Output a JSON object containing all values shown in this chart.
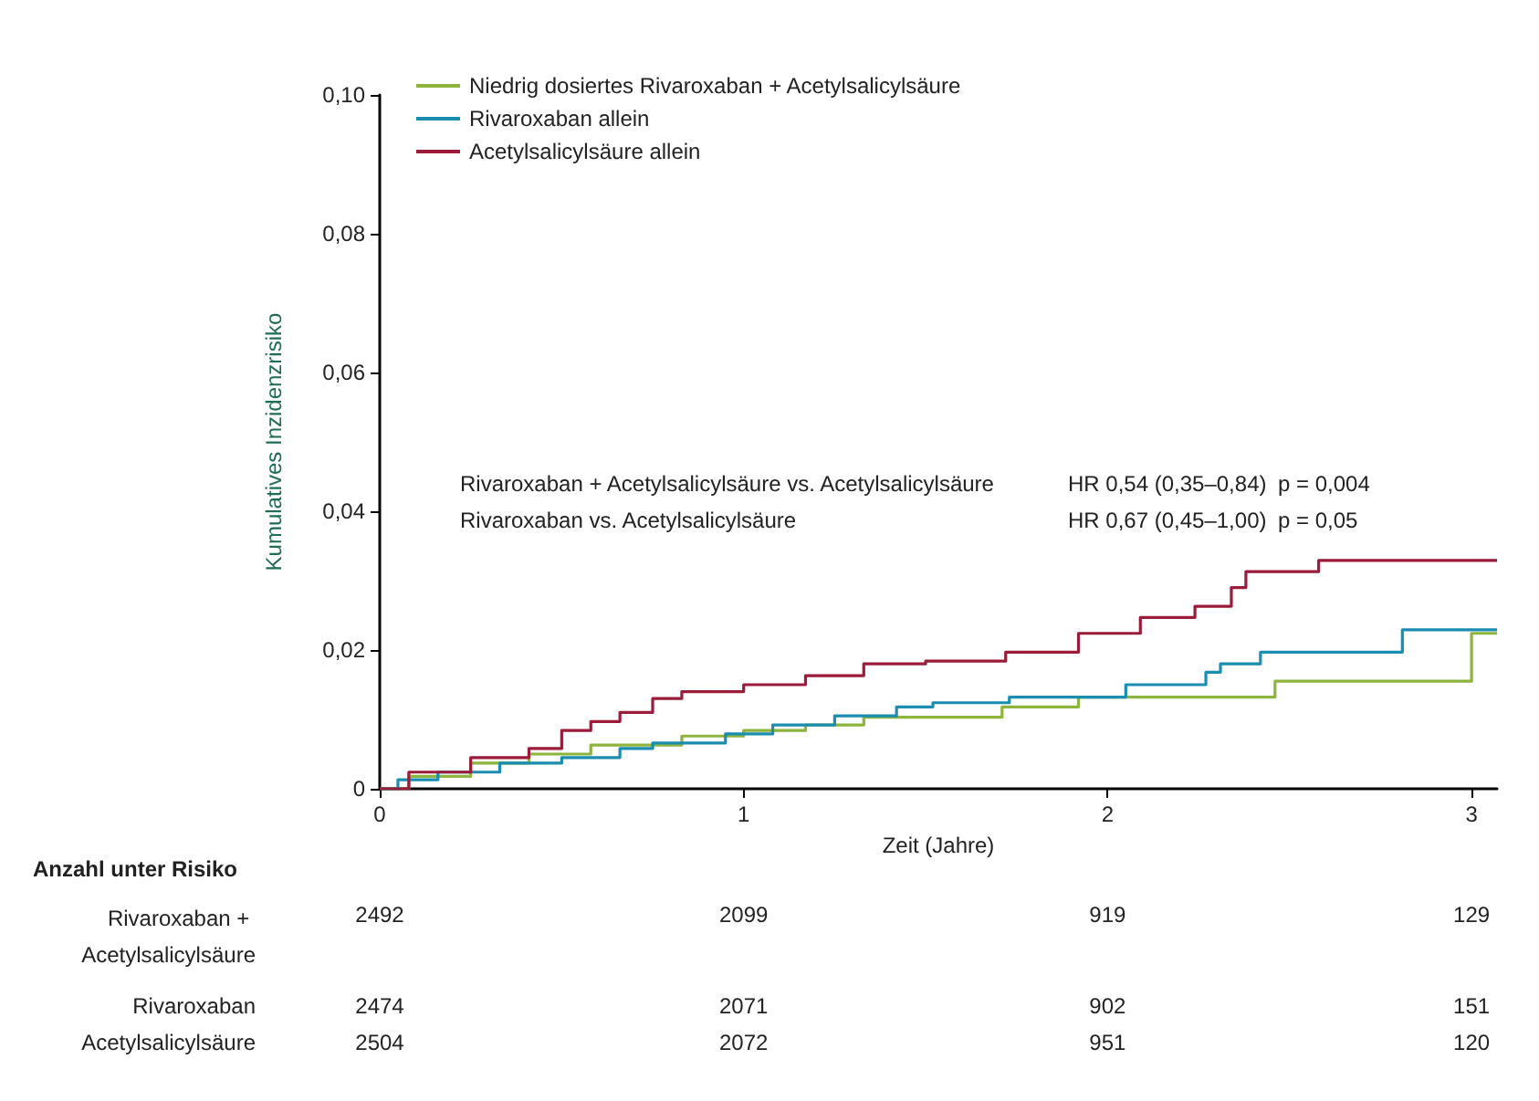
{
  "chart_data": {
    "type": "step",
    "xlabel": "Zeit (Jahre)",
    "ylabel": "Kumulatives Inzidenzrisiko",
    "xlim": [
      0,
      3.07
    ],
    "xticks": [
      0,
      1,
      2,
      3
    ],
    "ylim": [
      0,
      0.1
    ],
    "yticks": [
      {
        "value": 0,
        "label": "0"
      },
      {
        "value": 0.02,
        "label": "0,02"
      },
      {
        "value": 0.04,
        "label": "0,04"
      },
      {
        "value": 0.06,
        "label": "0,06"
      },
      {
        "value": 0.08,
        "label": "0,08"
      },
      {
        "value": 0.1,
        "label": "0,10"
      }
    ],
    "grid": false,
    "legend": "top left",
    "marker": "none",
    "line_style": "solid",
    "series": [
      {
        "name": "Niedrig dosiertes Rivaroxaban + Acetylsalicylsäure",
        "color": "#8db43c",
        "x": [
          0,
          0.08,
          0.25,
          0.41,
          0.58,
          0.83,
          1.0,
          1.17,
          1.33,
          1.71,
          1.92,
          2.46,
          3.0,
          3.07
        ],
        "values": [
          0,
          0.0018,
          0.0037,
          0.005,
          0.0063,
          0.0076,
          0.0084,
          0.0092,
          0.0103,
          0.0118,
          0.0132,
          0.0155,
          0.0224,
          0.0224
        ]
      },
      {
        "name": "Rivaroxaban allein",
        "color": "#1b8db0",
        "x": [
          0,
          0.05,
          0.16,
          0.33,
          0.5,
          0.66,
          0.75,
          0.95,
          1.08,
          1.25,
          1.42,
          1.52,
          1.73,
          2.05,
          2.27,
          2.31,
          2.42,
          2.81,
          3.07
        ],
        "values": [
          0,
          0.0013,
          0.0024,
          0.0037,
          0.0045,
          0.0058,
          0.0066,
          0.0079,
          0.0092,
          0.0105,
          0.0118,
          0.0124,
          0.0132,
          0.015,
          0.0168,
          0.018,
          0.0197,
          0.0229,
          0.0229
        ]
      },
      {
        "name": "Acetylsalicylsäure allein",
        "color": "#9b1b3a",
        "x": [
          0,
          0.08,
          0.25,
          0.41,
          0.5,
          0.58,
          0.66,
          0.75,
          0.83,
          1.0,
          1.17,
          1.33,
          1.5,
          1.72,
          1.92,
          2.09,
          2.24,
          2.34,
          2.38,
          2.58,
          3.07
        ],
        "values": [
          0,
          0.0024,
          0.0045,
          0.0058,
          0.0084,
          0.0097,
          0.011,
          0.013,
          0.014,
          0.015,
          0.0163,
          0.018,
          0.0184,
          0.0197,
          0.0224,
          0.0247,
          0.0263,
          0.029,
          0.0313,
          0.0329,
          0.0329
        ]
      }
    ],
    "annotations": [
      "Rivaroxaban + Acetylsalicylsäure vs. Acetylsalicylsäure",
      "HR 0,54 (0,35–0,84)",
      "p = 0,004",
      "Rivaroxaban vs. Acetylsalicylsäure",
      "HR 0,67 (0,45–1,00)",
      "p = 0,05",
      "Anzahl unter Risiko",
      "Rivaroxaban + Acetylsalicylsäure",
      "2492",
      "2099",
      "919",
      "129",
      "Rivaroxaban",
      "2474",
      "2071",
      "902",
      "151",
      "Acetylsalicylsäure",
      "2504",
      "2072",
      "951",
      "120"
    ]
  }
}
